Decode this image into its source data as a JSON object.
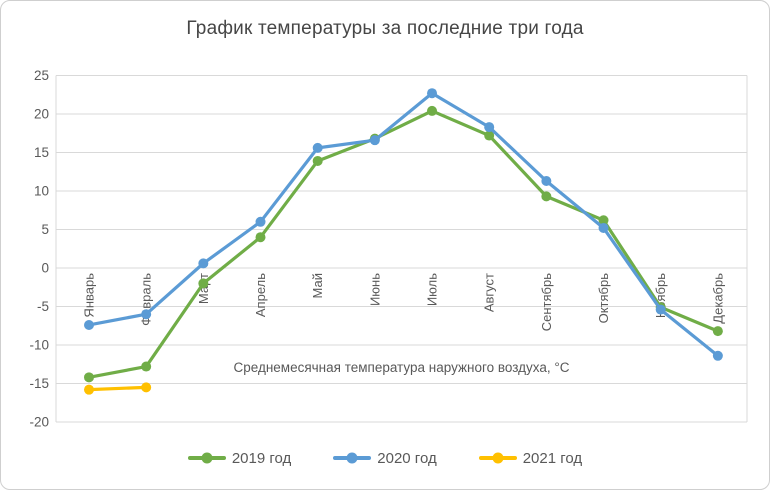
{
  "figure": {
    "kind": "excel-style line chart screenshot"
  },
  "chart_data": {
    "type": "line",
    "title": "График температуры за последние три года",
    "xlabel": "Среднемесячная температура наружного воздуха, °С",
    "ylabel": "",
    "categories": [
      "Январь",
      "Февраль",
      "Март",
      "Апрель",
      "Май",
      "Июнь",
      "Июль",
      "Август",
      "Сентябрь",
      "Октябрь",
      "Ноябрь",
      "Декабрь"
    ],
    "series": [
      {
        "name": "2019 год",
        "color": "#70AD47",
        "values": [
          -14.2,
          -12.8,
          -2.0,
          4.0,
          13.9,
          16.8,
          20.4,
          17.2,
          9.3,
          6.2,
          -5.1,
          -8.2
        ]
      },
      {
        "name": "2020 год",
        "color": "#5B9BD5",
        "values": [
          -7.4,
          -6.0,
          0.6,
          6.0,
          15.6,
          16.6,
          22.7,
          18.3,
          11.3,
          5.2,
          -5.4,
          -11.4
        ]
      },
      {
        "name": "2021 год",
        "color": "#FFC000",
        "values": [
          -15.8,
          -15.5,
          null,
          null,
          null,
          null,
          null,
          null,
          null,
          null,
          null,
          null
        ]
      }
    ],
    "ylim": [
      -20,
      25
    ],
    "ytick_step": 5,
    "yticks": [
      "25",
      "20",
      "15",
      "10",
      "5",
      "0",
      "-5",
      "-10",
      "-15",
      "-20"
    ],
    "grid": "horizontal",
    "grid_color": "#d9d9d9",
    "text_color": "#595959",
    "legend_position": "bottom",
    "x_labels_rotated_degrees": -90
  }
}
